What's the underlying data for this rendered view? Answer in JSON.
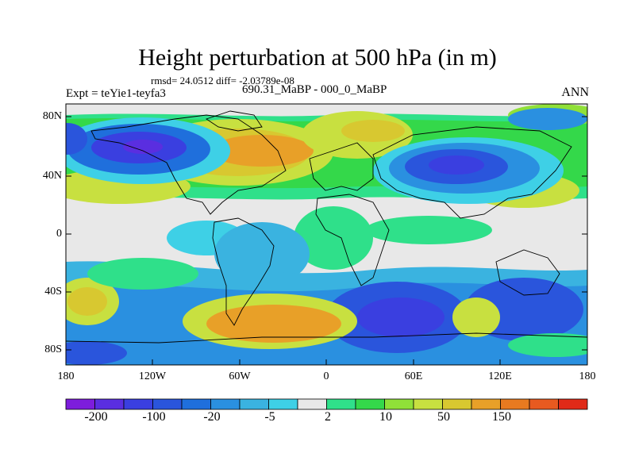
{
  "title": "Height perturbation at 500 hPa (in m)",
  "stats": "rmsd= 24.0512 diff= -2.03789e-08",
  "left_label": "Expt = teYie1-teyfa3",
  "center_label": "690.31_MaBP - 000_0_MaBP",
  "right_label": "ANN",
  "y_axis": {
    "ticks": [
      "80N",
      "40N",
      "0",
      "40S",
      "80S"
    ]
  },
  "x_axis": {
    "ticks": [
      "180",
      "120W",
      "60W",
      "0",
      "60E",
      "120E",
      "180"
    ]
  },
  "colorbar": {
    "labels": [
      "-200",
      "-100",
      "-20",
      "-5",
      "2",
      "10",
      "50",
      "150"
    ],
    "colors": [
      "#7d1ddc",
      "#5a2ee0",
      "#3a3fe0",
      "#2a55dc",
      "#1f6fdc",
      "#2a90e0",
      "#3ab3e0",
      "#3ed0e6",
      "#e8e8e8",
      "#2fe08a",
      "#34d84a",
      "#90e038",
      "#c8e040",
      "#d8c830",
      "#e8a028",
      "#e87a20",
      "#e85a20",
      "#e02a18"
    ]
  }
}
